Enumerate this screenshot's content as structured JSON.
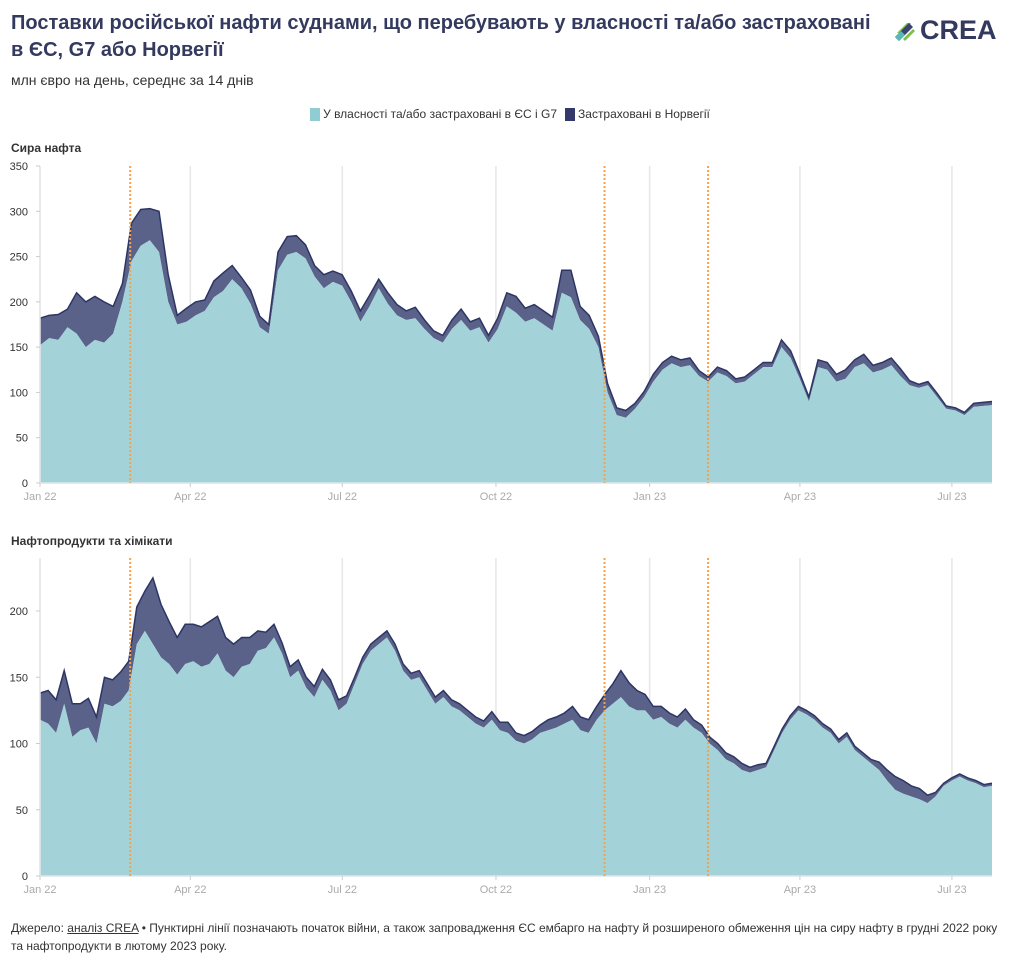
{
  "title": "Поставки російської нафти суднами, що перебувають у власності та/або застраховані в ЄС, G7 або Норвегії",
  "subtitle": "млн євро на день, середнє за 14 днів",
  "logo": {
    "text": "CREA",
    "icon": "crea-logo-icon"
  },
  "legend": [
    {
      "label": "У власності та/або застраховані в ЄС і G7",
      "color": "#8fcdd3"
    },
    {
      "label": "Застраховані в Норвегії",
      "color": "#333a6b"
    }
  ],
  "colors": {
    "eu_g7_fill": "#a3d2d8",
    "norway_fill": "#5a6289",
    "line": "#2c3563",
    "event_line": "#f4a34a",
    "grid": "#e6e6e6"
  },
  "footer": {
    "source_prefix": "Джерело: ",
    "source_link": "аналіз CREA",
    "note": " • Пунктирні лінії позначають початок війни, а також запровадження ЄС ембарго на нафту й розширеного обмеження цін на сиру нафту в грудні 2022 року та нафтопродукти в лютому 2023 року."
  },
  "chart_data": [
    {
      "type": "area",
      "stacked": true,
      "title": "Сира нафта",
      "ylabel": "млн євро на день",
      "ylim": [
        0,
        350
      ],
      "yticks": [
        0,
        50,
        100,
        150,
        200,
        250,
        300,
        350
      ],
      "x_start": "2022-01-01",
      "x_end": "2023-07-25",
      "xticks": [
        {
          "label": "Jan 22",
          "date": "2022-01-01"
        },
        {
          "label": "Apr 22",
          "date": "2022-04-01"
        },
        {
          "label": "Jul 22",
          "date": "2022-07-01"
        },
        {
          "label": "Oct 22",
          "date": "2022-10-01"
        },
        {
          "label": "Jan 23",
          "date": "2023-01-01"
        },
        {
          "label": "Apr 23",
          "date": "2023-04-01"
        },
        {
          "label": "Jul 23",
          "date": "2023-07-01"
        }
      ],
      "event_lines": [
        "2022-02-24",
        "2022-12-05",
        "2023-02-05"
      ],
      "grid": true,
      "legend_position": "top-center",
      "x_step_days": 7,
      "series": [
        {
          "name": "У власності та/або застраховані в ЄС і G7",
          "values": [
            152,
            160,
            158,
            172,
            165,
            150,
            158,
            155,
            165,
            200,
            245,
            262,
            268,
            255,
            200,
            175,
            178,
            185,
            190,
            205,
            212,
            225,
            215,
            198,
            172,
            165,
            235,
            252,
            255,
            248,
            228,
            215,
            222,
            218,
            200,
            178,
            195,
            215,
            198,
            185,
            180,
            182,
            170,
            160,
            155,
            170,
            180,
            168,
            172,
            155,
            170,
            195,
            188,
            178,
            182,
            175,
            168,
            210,
            205,
            180,
            170,
            150,
            100,
            75,
            72,
            82,
            95,
            112,
            125,
            132,
            128,
            130,
            118,
            112,
            122,
            118,
            110,
            112,
            120,
            128,
            128,
            150,
            138,
            115,
            90,
            128,
            125,
            112,
            115,
            128,
            132,
            122,
            125,
            130,
            118,
            108,
            105,
            108,
            95,
            82,
            80,
            75,
            84,
            85,
            86
          ]
        },
        {
          "name": "Застраховані в Норвегії",
          "values": [
            30,
            25,
            28,
            20,
            45,
            50,
            48,
            45,
            30,
            20,
            42,
            40,
            35,
            45,
            30,
            10,
            15,
            15,
            12,
            18,
            20,
            15,
            12,
            15,
            12,
            10,
            20,
            20,
            18,
            15,
            12,
            15,
            12,
            12,
            12,
            12,
            12,
            10,
            12,
            12,
            10,
            12,
            10,
            8,
            8,
            10,
            12,
            10,
            10,
            8,
            12,
            15,
            18,
            15,
            15,
            15,
            15,
            25,
            30,
            15,
            15,
            12,
            10,
            8,
            8,
            6,
            6,
            8,
            8,
            8,
            8,
            8,
            6,
            5,
            6,
            6,
            5,
            5,
            5,
            5,
            5,
            8,
            8,
            6,
            5,
            8,
            8,
            8,
            10,
            8,
            10,
            8,
            8,
            8,
            8,
            5,
            4,
            4,
            4,
            3,
            3,
            3,
            4,
            4,
            4
          ]
        }
      ]
    },
    {
      "type": "area",
      "stacked": true,
      "title": "Нафтопродукти та хімікати",
      "ylabel": "млн євро на день",
      "ylim": [
        0,
        240
      ],
      "yticks": [
        0,
        50,
        100,
        150,
        200
      ],
      "x_start": "2022-01-01",
      "x_end": "2023-07-25",
      "xticks": [
        {
          "label": "Jan 22",
          "date": "2022-01-01"
        },
        {
          "label": "Apr 22",
          "date": "2022-04-01"
        },
        {
          "label": "Jul 22",
          "date": "2022-07-01"
        },
        {
          "label": "Oct 22",
          "date": "2022-10-01"
        },
        {
          "label": "Jan 23",
          "date": "2023-01-01"
        },
        {
          "label": "Apr 23",
          "date": "2023-04-01"
        },
        {
          "label": "Jul 23",
          "date": "2023-07-01"
        }
      ],
      "event_lines": [
        "2022-02-24",
        "2022-12-05",
        "2023-02-05"
      ],
      "grid": true,
      "legend_position": "top-center",
      "x_step_days": 7,
      "series": [
        {
          "name": "У власності та/або застраховані в ЄС і G7",
          "values": [
            118,
            115,
            108,
            130,
            105,
            110,
            112,
            100,
            130,
            128,
            132,
            140,
            175,
            185,
            175,
            165,
            160,
            152,
            160,
            162,
            158,
            160,
            168,
            155,
            150,
            158,
            160,
            170,
            172,
            180,
            168,
            150,
            155,
            142,
            135,
            148,
            140,
            125,
            130,
            145,
            160,
            170,
            175,
            180,
            170,
            155,
            148,
            150,
            140,
            130,
            135,
            128,
            125,
            120,
            115,
            112,
            118,
            110,
            108,
            102,
            100,
            103,
            108,
            110,
            112,
            115,
            118,
            110,
            108,
            118,
            125,
            130,
            135,
            128,
            125,
            125,
            118,
            120,
            115,
            112,
            118,
            112,
            108,
            100,
            95,
            88,
            85,
            80,
            78,
            80,
            82,
            95,
            108,
            118,
            125,
            122,
            118,
            112,
            108,
            100,
            105,
            95,
            90,
            85,
            80,
            72,
            65,
            62,
            60,
            58,
            55,
            60,
            68,
            72,
            75,
            72,
            70,
            67,
            68
          ]
        },
        {
          "name": "Застраховані в Норвегії",
          "values": [
            20,
            25,
            25,
            25,
            25,
            20,
            22,
            20,
            20,
            20,
            22,
            22,
            28,
            30,
            50,
            40,
            32,
            28,
            30,
            28,
            30,
            32,
            28,
            25,
            25,
            22,
            20,
            15,
            12,
            10,
            8,
            8,
            8,
            8,
            8,
            8,
            8,
            8,
            6,
            5,
            5,
            5,
            5,
            5,
            5,
            5,
            5,
            5,
            5,
            5,
            5,
            5,
            5,
            5,
            5,
            5,
            6,
            6,
            8,
            6,
            6,
            6,
            6,
            8,
            8,
            8,
            10,
            10,
            10,
            10,
            12,
            15,
            20,
            18,
            15,
            12,
            10,
            8,
            8,
            8,
            8,
            6,
            6,
            5,
            5,
            5,
            5,
            5,
            4,
            4,
            3,
            3,
            3,
            3,
            3,
            3,
            3,
            3,
            3,
            3,
            3,
            3,
            3,
            3,
            6,
            8,
            10,
            10,
            8,
            8,
            6,
            3,
            2,
            2,
            2,
            2,
            2,
            2,
            2
          ]
        }
      ]
    }
  ]
}
